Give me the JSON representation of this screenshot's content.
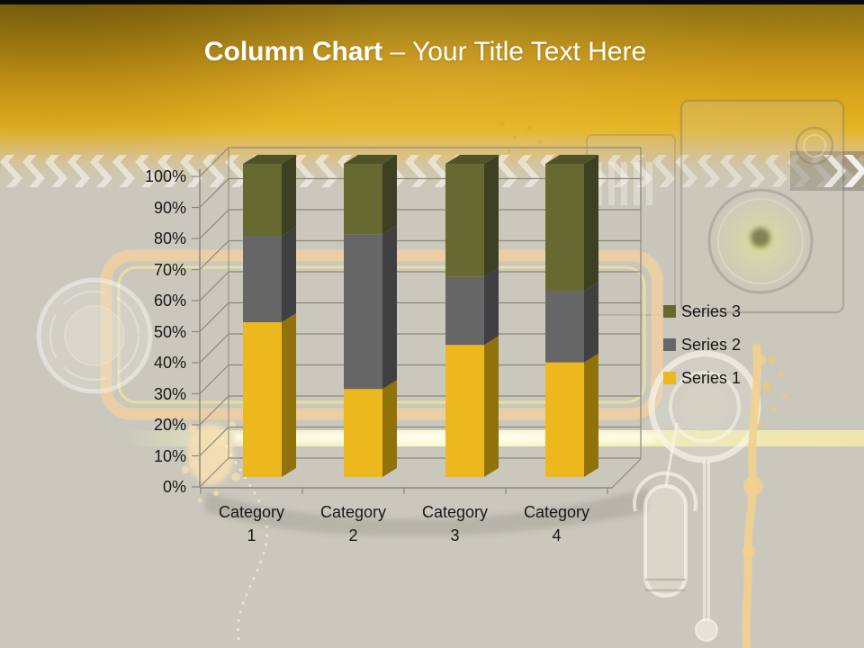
{
  "slide": {
    "title_bold": "Column Chart",
    "title_rest": "– Your Title Text Here"
  },
  "colors": {
    "title_text": "#FFFFFF",
    "gold_band_top": "#8A6B10",
    "gold_band_bottom": "#E4B321",
    "background": "#CAC8BD",
    "grid_line": "#8B897E",
    "axis_text": "#171717",
    "series1_front": "#EDB81E",
    "series1_side": "#8F720A",
    "series2_front": "#666666",
    "series2_side": "#404042",
    "series3_front": "#666A31",
    "series3_side": "#3E4023",
    "series3_top": "#50532A"
  },
  "chart_data": {
    "type": "bar",
    "subtype": "3d-100%-stacked-column",
    "categories": [
      "Category 1",
      "Category 2",
      "Category 3",
      "Category 4"
    ],
    "series": [
      {
        "name": "Series 1",
        "values": [
          4.3,
          2.5,
          3.5,
          4.5
        ],
        "color": "#EDB81E",
        "side_color": "#8F720A"
      },
      {
        "name": "Series 2",
        "values": [
          2.4,
          4.4,
          1.8,
          2.8
        ],
        "color": "#666666",
        "side_color": "#404042"
      },
      {
        "name": "Series 3",
        "values": [
          2.0,
          2.0,
          3.0,
          5.0
        ],
        "color": "#666A31",
        "side_color": "#3E4023"
      }
    ],
    "percent_stacks": [
      [
        49.4,
        27.6,
        23.0
      ],
      [
        28.1,
        49.4,
        22.5
      ],
      [
        42.2,
        21.7,
        36.1
      ],
      [
        36.6,
        22.8,
        40.7
      ]
    ],
    "y_ticks": [
      "0%",
      "10%",
      "20%",
      "30%",
      "40%",
      "50%",
      "60%",
      "70%",
      "80%",
      "90%",
      "100%"
    ],
    "ylim": [
      0,
      100
    ],
    "grid": true,
    "legend": [
      "Series 3",
      "Series 2",
      "Series 1"
    ],
    "legend_position": "right"
  }
}
